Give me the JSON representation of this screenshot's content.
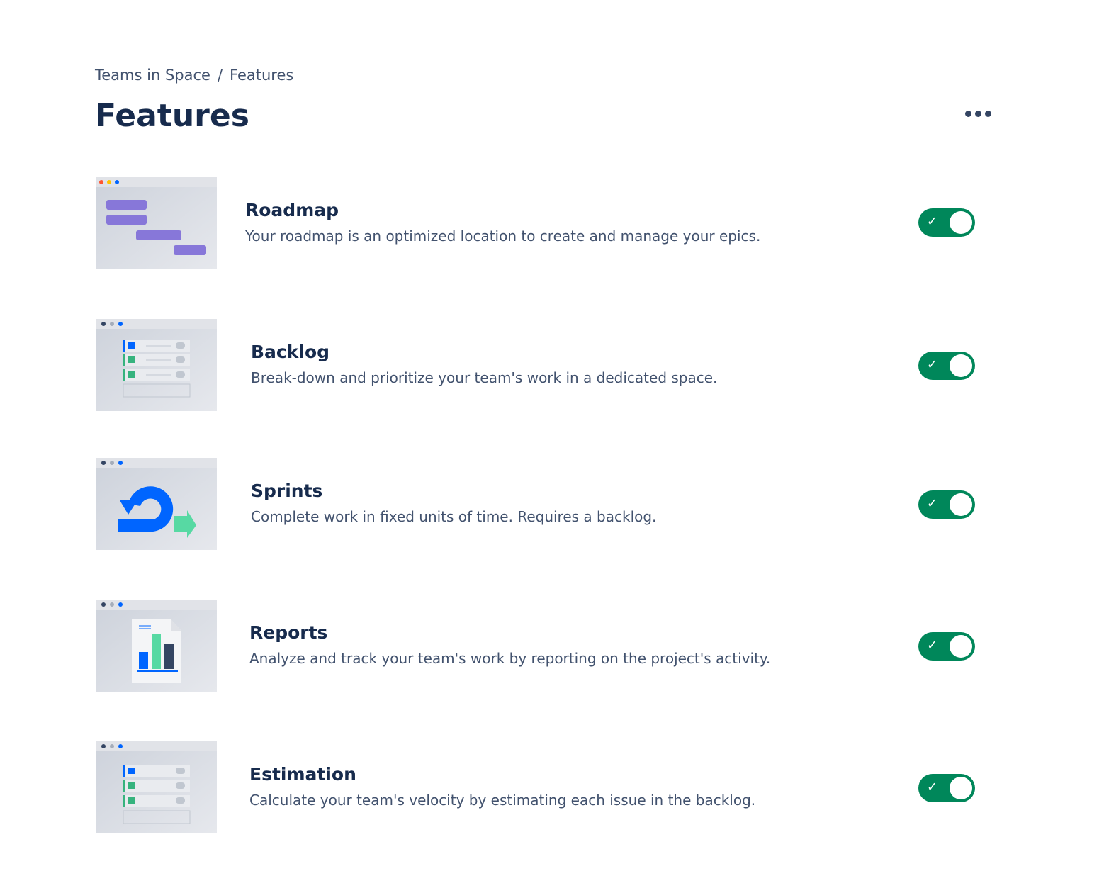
{
  "breadcrumb": {
    "project": "Teams in Space",
    "separator": "/",
    "current": "Features"
  },
  "page_title": "Features",
  "more_icon": "more-horizontal-icon",
  "toggle_color": "#00875A",
  "features": [
    {
      "title": "Roadmap",
      "description": "Your roadmap is an optimized location to create and manage your epics.",
      "enabled": true
    },
    {
      "title": "Backlog",
      "description": "Break-down and prioritize your team's work in a dedicated space.",
      "enabled": true
    },
    {
      "title": "Sprints",
      "description": "Complete work in fixed units of time. Requires a backlog.",
      "enabled": true
    },
    {
      "title": "Reports",
      "description": "Analyze and track your team's work by reporting on the project's activity.",
      "enabled": true
    },
    {
      "title": "Estimation",
      "description": "Calculate your team's velocity by estimating each issue in the backlog.",
      "enabled": true
    }
  ]
}
